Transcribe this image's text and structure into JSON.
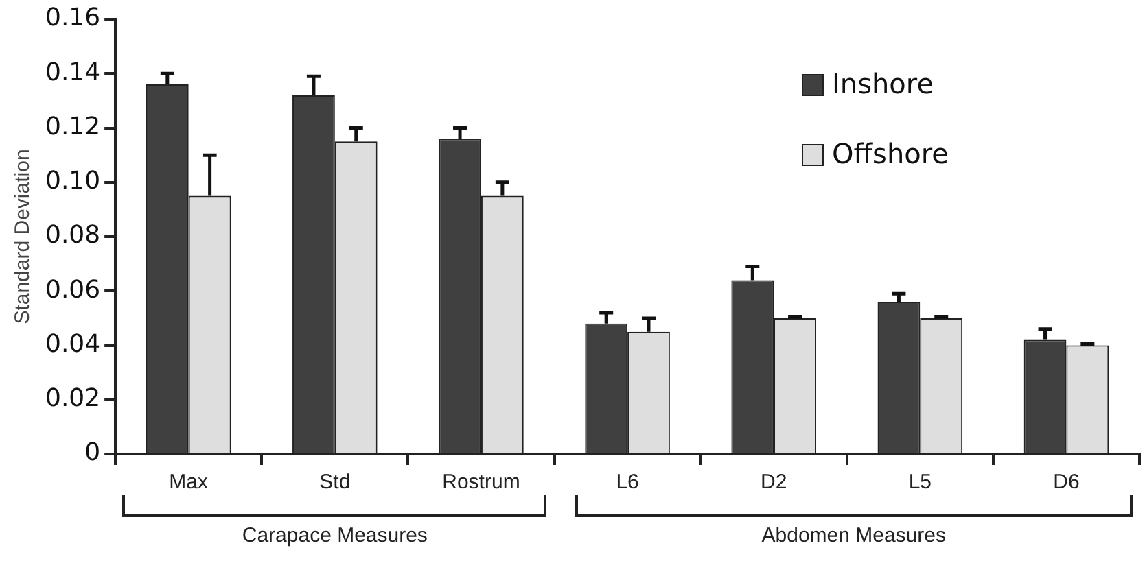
{
  "chart_data": {
    "type": "bar",
    "ylabel": "Standard Deviation",
    "categories": [
      "Max",
      "Std",
      "Rostrum",
      "L6",
      "D2",
      "L5",
      "D6"
    ],
    "series": [
      {
        "name": "Inshore",
        "color": "#404040",
        "values": [
          0.136,
          0.132,
          0.116,
          0.048,
          0.064,
          0.056,
          0.042
        ],
        "errors": [
          0.004,
          0.007,
          0.004,
          0.004,
          0.005,
          0.003,
          0.004
        ]
      },
      {
        "name": "Offshore",
        "color": "#dedede",
        "values": [
          0.095,
          0.115,
          0.095,
          0.045,
          0.05,
          0.05,
          0.04
        ],
        "errors": [
          0.015,
          0.005,
          0.005,
          0.005,
          0.0005,
          0.0005,
          0.0005
        ]
      }
    ],
    "ylim": [
      0,
      0.16
    ],
    "yticks": [
      0,
      0.02,
      0.04,
      0.06,
      0.08,
      {
        "value": 0.1,
        "label": "0.10"
      },
      0.12,
      0.14,
      0.16
    ],
    "annotations": [
      "Carapace Measures",
      "Abdomen Measures"
    ],
    "grid": false,
    "legend": "top right"
  }
}
